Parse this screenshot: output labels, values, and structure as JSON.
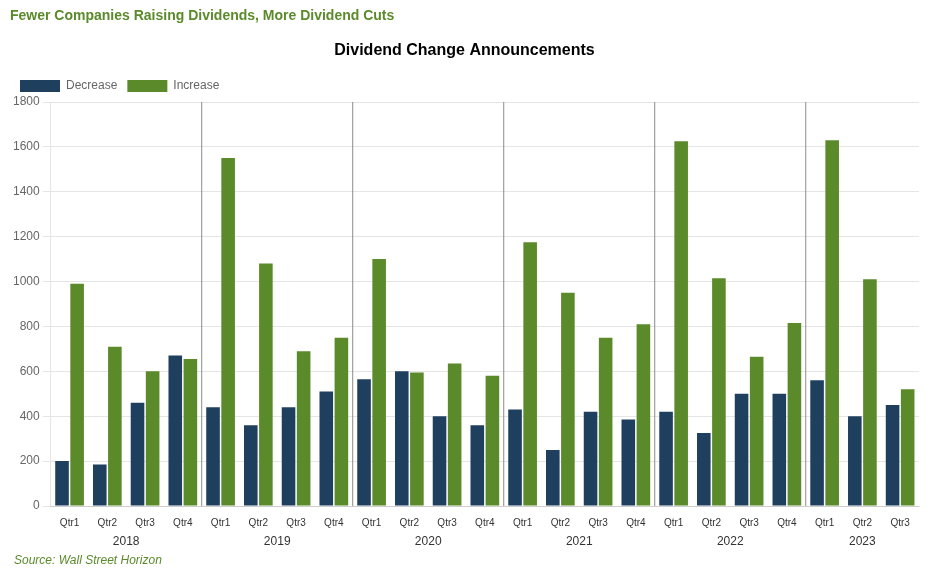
{
  "chart_data": {
    "type": "bar",
    "title": "Dividend Change Announcements",
    "subtitle": "Fewer Companies Raising Dividends, More Dividend Cuts",
    "annotations": [
      "Source: Wall Street Horizon"
    ],
    "categories": [
      "Qtr1",
      "Qtr2",
      "Qtr3",
      "Qtr4",
      "Qtr1",
      "Qtr2",
      "Qtr3",
      "Qtr4",
      "Qtr1",
      "Qtr2",
      "Qtr3",
      "Qtr4",
      "Qtr1",
      "Qtr2",
      "Qtr3",
      "Qtr4",
      "Qtr1",
      "Qtr2",
      "Qtr3",
      "Qtr4",
      "Qtr1",
      "Qtr2",
      "Qtr3"
    ],
    "category_groups": [
      {
        "label": "2018",
        "count": 4
      },
      {
        "label": "2019",
        "count": 4
      },
      {
        "label": "2020",
        "count": 4
      },
      {
        "label": "2021",
        "count": 4
      },
      {
        "label": "2022",
        "count": 4
      },
      {
        "label": "2023",
        "count": 3
      }
    ],
    "series": [
      {
        "name": "Decrease",
        "color": "#1f3f5f",
        "values": [
          200,
          185,
          460,
          670,
          440,
          360,
          440,
          510,
          565,
          600,
          400,
          360,
          430,
          250,
          420,
          385,
          420,
          325,
          500,
          500,
          560,
          400,
          450
        ]
      },
      {
        "name": "Increase",
        "color": "#5a8a2a",
        "values": [
          990,
          710,
          600,
          655,
          1550,
          1080,
          690,
          750,
          1100,
          595,
          635,
          580,
          1175,
          950,
          750,
          810,
          1625,
          1015,
          665,
          815,
          1630,
          1010,
          520
        ]
      }
    ],
    "ylim": [
      0,
      1800
    ],
    "yticks": [
      0,
      200,
      400,
      600,
      800,
      1000,
      1200,
      1400,
      1600,
      1800
    ],
    "grid": true,
    "legend": "upper left"
  }
}
